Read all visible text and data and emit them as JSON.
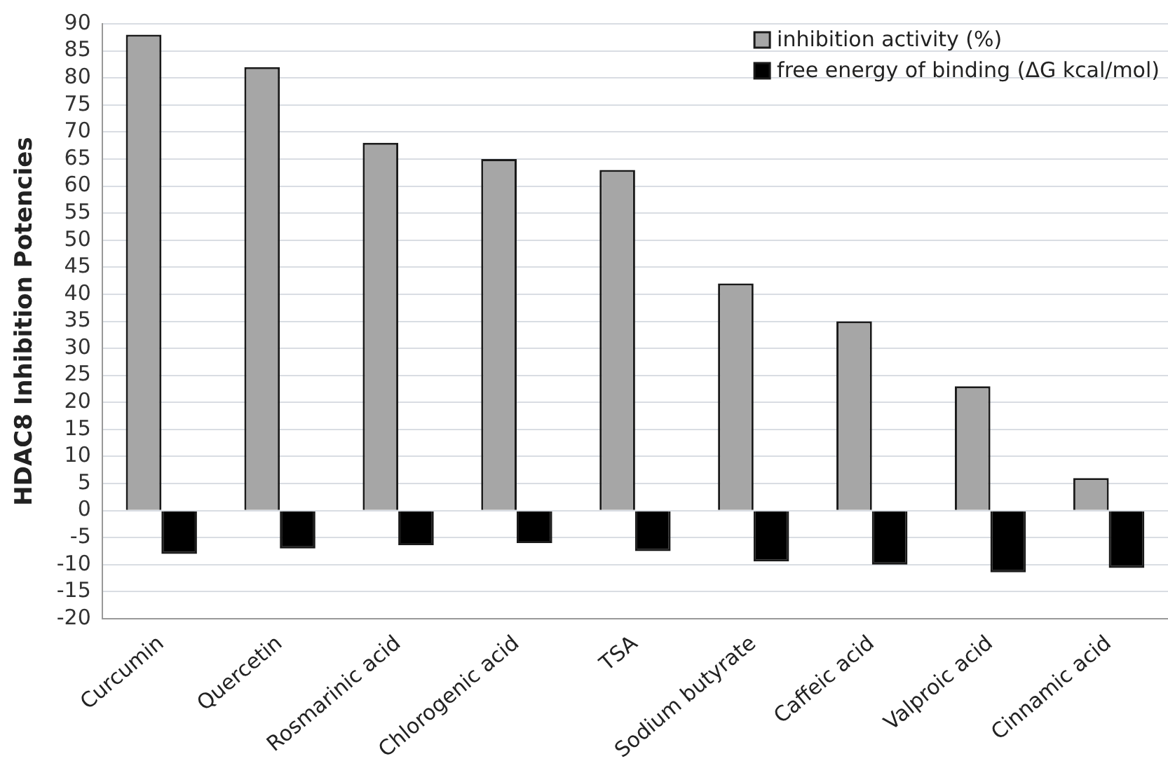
{
  "chart_data": {
    "type": "bar",
    "ylabel": "HDAC8 Inhibition Potencies",
    "categories": [
      "Curcumin",
      "Quercetin",
      "Rosmarinic acid",
      "Chlorogenic acid",
      "TSA",
      "Sodium butyrate",
      "Caffeic acid",
      "Valproic acid",
      "Cinnamic acid"
    ],
    "series": [
      {
        "name": "inhibition activity (%)",
        "color": "#a6a6a6",
        "values": [
          88,
          82,
          68,
          65,
          63,
          42,
          35,
          23,
          6
        ]
      },
      {
        "name": "free energy of binding (ΔG kcal/mol)",
        "color": "#000000",
        "values": [
          -8,
          -7,
          -6.4,
          -6,
          -7.5,
          -9.4,
          -10,
          -11.4,
          -10.6
        ]
      }
    ],
    "ylim": [
      -20,
      90
    ],
    "yticks": [
      -20,
      -15,
      -10,
      -5,
      0,
      5,
      10,
      15,
      20,
      25,
      30,
      35,
      40,
      45,
      50,
      55,
      60,
      65,
      70,
      75,
      80,
      85,
      90
    ],
    "grid": "y",
    "legend": "top right"
  }
}
